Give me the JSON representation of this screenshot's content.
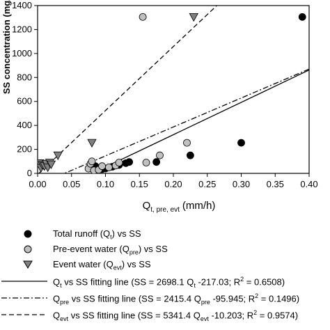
{
  "chart_data": {
    "type": "scatter",
    "xlabel_main": "Q",
    "xlabel_sub": "t, pre, evt",
    "xlabel_unit": "(mm/h)",
    "ylabel": "SS concentration (mg/L)",
    "xlim": [
      0,
      0.4
    ],
    "ylim": [
      0,
      1400
    ],
    "x_ticks": [
      "0.00",
      "0.05",
      "0.10",
      "0.15",
      "0.20",
      "0.25",
      "0.30",
      "0.35",
      "0.40"
    ],
    "y_ticks": [
      "0",
      "200",
      "400",
      "600",
      "800",
      "1000",
      "1200",
      "1400"
    ],
    "series": [
      {
        "name": "Total runoff (Qt) vs SS",
        "marker": "circle",
        "color": "#000000",
        "points": [
          [
            0.085,
            60
          ],
          [
            0.09,
            45
          ],
          [
            0.095,
            35
          ],
          [
            0.1,
            40
          ],
          [
            0.11,
            55
          ],
          [
            0.12,
            70
          ],
          [
            0.13,
            85
          ],
          [
            0.135,
            95
          ],
          [
            0.175,
            95
          ],
          [
            0.225,
            150
          ],
          [
            0.3,
            255
          ],
          [
            0.39,
            1305
          ]
        ]
      },
      {
        "name": "Pre-event water (Qpre) vs SS",
        "marker": "circle",
        "color": "#c0c0c0",
        "points": [
          [
            0.075,
            40
          ],
          [
            0.078,
            80
          ],
          [
            0.08,
            100
          ],
          [
            0.083,
            25
          ],
          [
            0.09,
            30
          ],
          [
            0.095,
            60
          ],
          [
            0.105,
            50
          ],
          [
            0.115,
            65
          ],
          [
            0.12,
            90
          ],
          [
            0.155,
            1305
          ],
          [
            0.16,
            90
          ],
          [
            0.18,
            150
          ],
          [
            0.22,
            255
          ]
        ]
      },
      {
        "name": "Event water (Qevt) vs SS",
        "marker": "triangle",
        "color": "#808080",
        "points": [
          [
            0.003,
            85
          ],
          [
            0.005,
            45
          ],
          [
            0.007,
            70
          ],
          [
            0.01,
            60
          ],
          [
            0.013,
            80
          ],
          [
            0.015,
            50
          ],
          [
            0.018,
            90
          ],
          [
            0.02,
            75
          ],
          [
            0.03,
            150
          ],
          [
            0.08,
            255
          ],
          [
            0.23,
            1305
          ]
        ]
      }
    ],
    "fit_lines": [
      {
        "name": "Qt vs SS fitting line",
        "slope": 2698.1,
        "intercept": -217.03,
        "style": "solid"
      },
      {
        "name": "Qpre vs SS fitting line",
        "slope": 2415.4,
        "intercept": -95.945,
        "style": "dashdot"
      },
      {
        "name": "Qevt vs SS fitting line",
        "slope": 5341.4,
        "intercept": -10.203,
        "style": "dashed"
      }
    ]
  },
  "legend": {
    "total_runoff": {
      "pre": "Total runoff (Q",
      "sub": "t",
      "post": ") vs SS"
    },
    "pre_event": {
      "pre": "Pre-event water (Q",
      "sub": "pre",
      "post": ") vs SS"
    },
    "event_water": {
      "pre": "Event water (Q",
      "sub": "evt",
      "post": ") vs SS"
    },
    "fit_t": {
      "p1": "Q",
      "sub1": "t",
      "p2": " vs SS fitting line (SS = 2698.1 Q",
      "sub2": "t",
      "p3": " -217.03; R",
      "sup": "2",
      "p4": " = 0.6508)"
    },
    "fit_pre": {
      "p1": "Q",
      "sub1": "pre",
      "p2": " vs SS fitting line (SS = 2415.4 Q",
      "sub2": "pre",
      "p3": " -95.945; R",
      "sup": "2",
      "p4": " = 0.1496)"
    },
    "fit_evt": {
      "p1": "Q",
      "sub1": "evt",
      "p2": " vs SS fitting line (SS = 5341.4 Q",
      "sub2": "evt",
      "p3": " -10.203; R",
      "sup": "2",
      "p4": " = 0.9574)"
    }
  }
}
